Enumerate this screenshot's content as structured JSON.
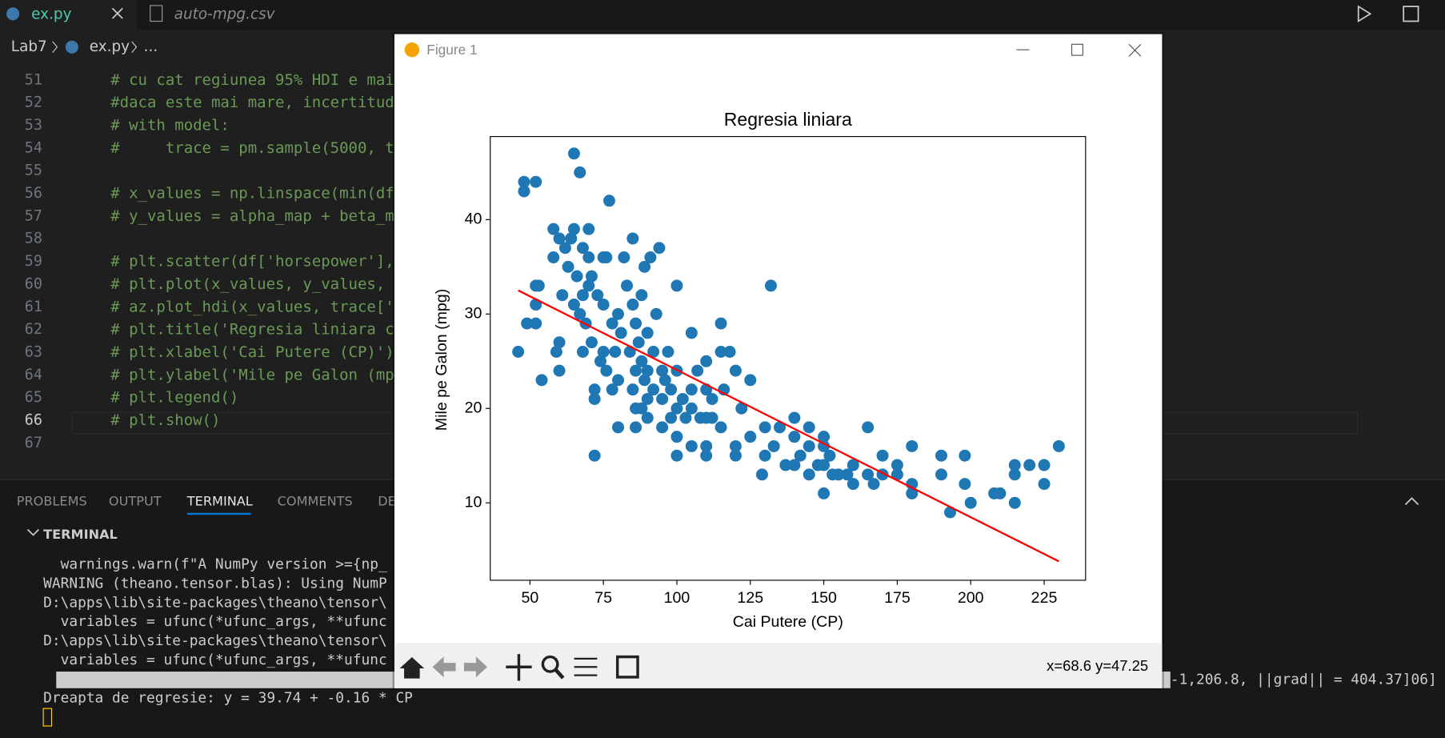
{
  "tabs": [
    {
      "label": "ex.py"
    },
    {
      "label": "auto-mpg.csv"
    }
  ],
  "breadcrumb": [
    "Lab7",
    "ex.py",
    "..."
  ],
  "editor": {
    "lines": [
      {
        "number": 51,
        "code": "# cu cat regiunea 95% HDI e mai"
      },
      {
        "number": 52,
        "code": "#daca este mai mare, incertitud"
      },
      {
        "number": 53,
        "code": "# with model:"
      },
      {
        "number": 54,
        "code": "#     trace = pm.sample(5000, t"
      },
      {
        "number": 55
      },
      {
        "number": 56,
        "code": "# x_values = np.linspace(min(df"
      },
      {
        "number": 57,
        "code": "# y_values = alpha_map + beta_m"
      },
      {
        "number": 58
      },
      {
        "number": 59,
        "code": "# plt.scatter(df['horsepower'],"
      },
      {
        "number": 60,
        "code": "# plt.plot(x_values, y_values, "
      },
      {
        "number": 61,
        "code": "# az.plot_hdi(x_values, trace['"
      },
      {
        "number": 62,
        "code": "# plt.title('Regresia liniara c"
      },
      {
        "number": 63,
        "code": "# plt.xlabel('Cai Putere (CP)')"
      },
      {
        "number": 64,
        "code": "# plt.ylabel('Mile pe Galon (mp"
      },
      {
        "number": 65,
        "code": "# plt.legend()"
      },
      {
        "number": 66,
        "code": "# plt.show()"
      },
      {
        "number": 67
      }
    ]
  },
  "panel_tabs": [
    "PROBLEMS",
    "OUTPUT",
    "TERMINAL",
    "COMMENTS",
    "DE"
  ],
  "terminal": {
    "header": "TERMINAL",
    "lines": [
      "  warnings.warn(f\"A NumPy version >={np_",
      "WARNING (theano.tensor.blas): Using NumP",
      "D:\\apps\\lib\\site-packages\\theano\\tensor\\",
      "  variables = ufunc(*ufunc_args, **ufunc",
      "D:\\apps\\lib\\site-packages\\theano\\tensor\\",
      "  variables = ufunc(*ufunc_args, **ufunc"
    ],
    "progress_tail": "-1,206.8, ||grad|| = 404.37]06]",
    "result": "Dreapta de regresie: y = 39.74 + -0.16 * CP"
  },
  "window": {
    "title": "Figure 1",
    "status": "x=68.6 y=47.25"
  },
  "chart_data": {
    "type": "scatter",
    "title": "Regresia liniara",
    "x_label": "Cai Putere (CP)",
    "y_label": "Mile pe Galon (mpg)",
    "xlim": [
      36.5,
      239.1
    ],
    "ylim": [
      1.8,
      48.8
    ],
    "xticks": [
      50,
      75,
      100,
      125,
      150,
      175,
      200,
      225
    ],
    "yticks": [
      10,
      20,
      30,
      40
    ],
    "series": [
      {
        "color": "#1f77b4",
        "x": [
          46,
          48,
          48,
          49,
          52,
          52,
          52,
          52,
          53,
          54,
          58,
          58,
          59,
          60,
          60,
          60,
          61,
          62,
          63,
          64,
          65,
          65,
          65,
          66,
          67,
          67,
          68,
          68,
          68,
          69,
          70,
          70,
          70,
          71,
          71,
          72,
          72,
          72,
          73,
          74,
          75,
          75,
          75,
          76,
          76,
          77,
          78,
          78,
          79,
          80,
          80,
          80,
          81,
          82,
          83,
          84,
          85,
          85,
          85,
          86,
          86,
          86,
          86,
          87,
          88,
          88,
          88,
          89,
          89,
          90,
          90,
          90,
          90,
          91,
          92,
          92,
          93,
          94,
          95,
          95,
          95,
          96,
          97,
          98,
          98,
          100,
          100,
          100,
          100,
          100,
          102,
          103,
          105,
          105,
          105,
          105,
          107,
          108,
          110,
          110,
          110,
          110,
          110,
          112,
          112,
          115,
          115,
          115,
          116,
          118,
          120,
          120,
          120,
          122,
          125,
          125,
          129,
          130,
          130,
          132,
          133,
          135,
          137,
          140,
          140,
          140,
          142,
          145,
          145,
          145,
          148,
          150,
          150,
          150,
          150,
          152,
          153,
          155,
          158,
          160,
          160,
          165,
          165,
          167,
          170,
          170,
          175,
          175,
          180,
          180,
          180,
          190,
          190,
          193,
          198,
          198,
          200,
          208,
          210,
          215,
          215,
          215,
          220,
          225,
          225,
          230
        ],
        "values": [
          26,
          44,
          43,
          29,
          44,
          29,
          31,
          33,
          33,
          23,
          39,
          36,
          26,
          27,
          38,
          24,
          32,
          37,
          35,
          38,
          39,
          47,
          31,
          34,
          45,
          30,
          32,
          37,
          26,
          29,
          36,
          39,
          33,
          34,
          27,
          15,
          22,
          21,
          32,
          25,
          36,
          26,
          31,
          36,
          24,
          42,
          29,
          22,
          26,
          30,
          18,
          23,
          28,
          36,
          33,
          26,
          31,
          38,
          22,
          24,
          29,
          20,
          18,
          27,
          20,
          25,
          32,
          35,
          23,
          28,
          24,
          21,
          19,
          36,
          26,
          22,
          30,
          37,
          18,
          24,
          21,
          23,
          26,
          19,
          22,
          33,
          24,
          20,
          17,
          15,
          21,
          19,
          28,
          22,
          20,
          16,
          24,
          19,
          25,
          22,
          19,
          16,
          15,
          21,
          19,
          26,
          29,
          18,
          22,
          26,
          24,
          16,
          15,
          20,
          23,
          17,
          13,
          18,
          15,
          33,
          16,
          18,
          14,
          19,
          17,
          14,
          15,
          18,
          13,
          16,
          14,
          14,
          16,
          11,
          17,
          15,
          13,
          13,
          13,
          14,
          12,
          18,
          13,
          12,
          15,
          13,
          14,
          13,
          16,
          12,
          11,
          15,
          13,
          9,
          15,
          12,
          10,
          11,
          11,
          14,
          13,
          10,
          14,
          14,
          12,
          16
        ]
      },
      {
        "type": "line",
        "color": "#ff0000",
        "x": [
          46,
          230
        ],
        "values": [
          32.5,
          3.8
        ]
      }
    ]
  }
}
